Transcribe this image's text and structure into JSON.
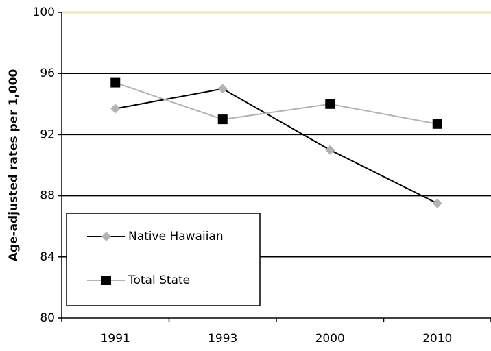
{
  "chart_data": {
    "type": "line",
    "y_label": "Age-adjusted rates per 1,000",
    "categories": [
      "1991",
      "1993",
      "2000",
      "2010"
    ],
    "series": [
      {
        "name": "Native Hawaiian",
        "color": "#000000",
        "marker": "diamond",
        "marker_color": "#b3b3b3",
        "values": [
          93.7,
          95.0,
          91.0,
          87.5
        ]
      },
      {
        "name": "Total State",
        "color": "#b3b3b3",
        "marker": "square",
        "marker_color": "#000000",
        "values": [
          95.4,
          93.0,
          94.0,
          92.7
        ]
      }
    ],
    "ylim": [
      80,
      100
    ],
    "yticks": [
      80,
      84,
      88,
      92,
      96,
      100
    ],
    "grid": true
  }
}
